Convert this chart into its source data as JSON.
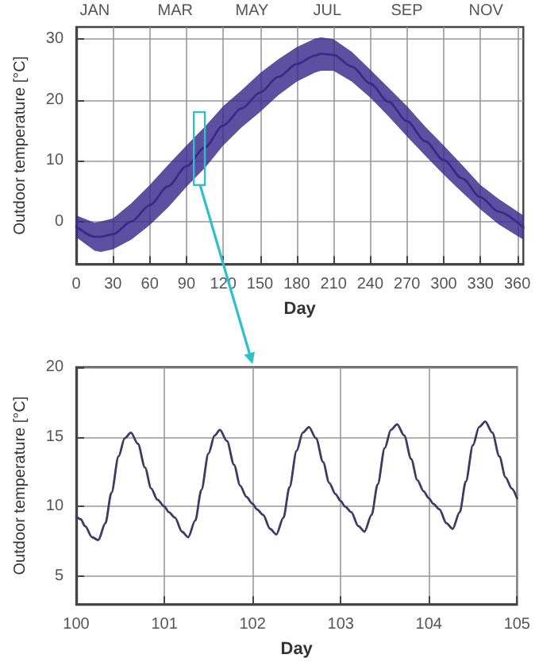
{
  "chart_data": [
    {
      "type": "line",
      "xlabel": "Day",
      "ylabel": "Outdoor temperature [°C]",
      "xlim": [
        0,
        365
      ],
      "xticks": [
        0,
        30,
        60,
        90,
        120,
        150,
        180,
        210,
        240,
        270,
        300,
        330,
        360
      ],
      "annotations": [
        "JAN",
        "MAR",
        "MAY",
        "JUL",
        "SEP",
        "NOV"
      ],
      "ylim": [
        -7,
        32
      ],
      "yticks": [
        0,
        10,
        20,
        30
      ],
      "grid": true,
      "marker": "none",
      "line_style": "solid",
      "x": [
        0,
        15,
        20,
        30,
        45,
        60,
        75,
        90,
        105,
        120,
        135,
        150,
        165,
        180,
        195,
        200,
        210,
        225,
        240,
        255,
        270,
        285,
        300,
        315,
        330,
        345,
        365
      ],
      "series": [
        {
          "color": "#3a2a8c",
          "values": [
            -0.8,
            -2.5,
            -2.5,
            -2.1,
            0,
            2.7,
            5.8,
            9.1,
            12.2,
            15.8,
            18.6,
            21.2,
            23.8,
            25.9,
            27.3,
            27.6,
            27.4,
            25.5,
            22.7,
            19.7,
            16.5,
            13.2,
            10.1,
            7.1,
            4,
            1.6,
            -1
          ],
          "lower": [
            -2.6,
            -4.8,
            -5,
            -4.6,
            -3,
            -0.6,
            2.3,
            5.7,
            8.8,
            12.5,
            15.5,
            18,
            20.8,
            23,
            24.5,
            24.8,
            24.8,
            23,
            20.4,
            17.3,
            14,
            10.8,
            7.7,
            4.8,
            2,
            -0.5,
            -3
          ],
          "upper": [
            1,
            -0.2,
            0,
            0.5,
            3,
            6,
            9.3,
            12.5,
            15.6,
            19,
            21.6,
            24.4,
            26.7,
            28.7,
            30.1,
            30.3,
            30,
            27.9,
            25,
            22,
            19,
            15.6,
            12.5,
            9.3,
            6,
            3.7,
            1
          ]
        }
      ]
    },
    {
      "type": "line",
      "xlabel": "Day",
      "ylabel": "Outdoor temperature [°C]",
      "xlim": [
        100,
        105
      ],
      "xticks": [
        100,
        101,
        102,
        103,
        104,
        105
      ],
      "ylim": [
        3,
        20
      ],
      "yticks": [
        5,
        10,
        15,
        20
      ],
      "grid": true,
      "marker": "none",
      "line_style": "solid",
      "x": [
        100,
        100.05,
        100.1,
        100.18,
        100.25,
        100.33,
        100.4,
        100.48,
        100.55,
        100.62,
        100.7,
        100.78,
        100.85,
        100.92,
        101,
        101.05,
        101.12,
        101.2,
        101.27,
        101.35,
        101.42,
        101.5,
        101.57,
        101.63,
        101.71,
        101.79,
        101.86,
        101.93,
        102,
        102.05,
        102.12,
        102.2,
        102.27,
        102.35,
        102.42,
        102.5,
        102.57,
        102.64,
        102.72,
        102.8,
        102.87,
        102.94,
        103,
        103.05,
        103.12,
        103.2,
        103.27,
        103.35,
        103.42,
        103.5,
        103.57,
        103.64,
        103.72,
        103.8,
        103.87,
        103.94,
        104,
        104.05,
        104.12,
        104.2,
        104.27,
        104.35,
        104.42,
        104.5,
        104.57,
        104.64,
        104.72,
        104.8,
        104.87,
        104.94,
        105
      ],
      "series": [
        {
          "color": "#3b3b66",
          "values": [
            9.3,
            9.1,
            8.6,
            7.8,
            7.6,
            8.8,
            11.0,
            13.6,
            14.9,
            15.3,
            14.5,
            12.8,
            11.3,
            10.5,
            10.0,
            9.6,
            9.2,
            8.2,
            7.8,
            9.0,
            11.2,
            13.8,
            15.1,
            15.5,
            14.7,
            13.0,
            11.5,
            10.7,
            10.2,
            9.8,
            9.4,
            8.4,
            8.0,
            9.2,
            11.4,
            14.0,
            15.3,
            15.7,
            14.9,
            13.2,
            11.7,
            10.9,
            10.4,
            10.0,
            9.6,
            8.6,
            8.2,
            9.4,
            11.6,
            14.2,
            15.5,
            15.9,
            15.1,
            13.4,
            11.9,
            11.1,
            10.6,
            10.2,
            9.8,
            8.8,
            8.4,
            9.6,
            11.8,
            14.4,
            15.7,
            16.1,
            15.3,
            13.6,
            12.1,
            11.3,
            10.6
          ]
        }
      ]
    }
  ]
}
